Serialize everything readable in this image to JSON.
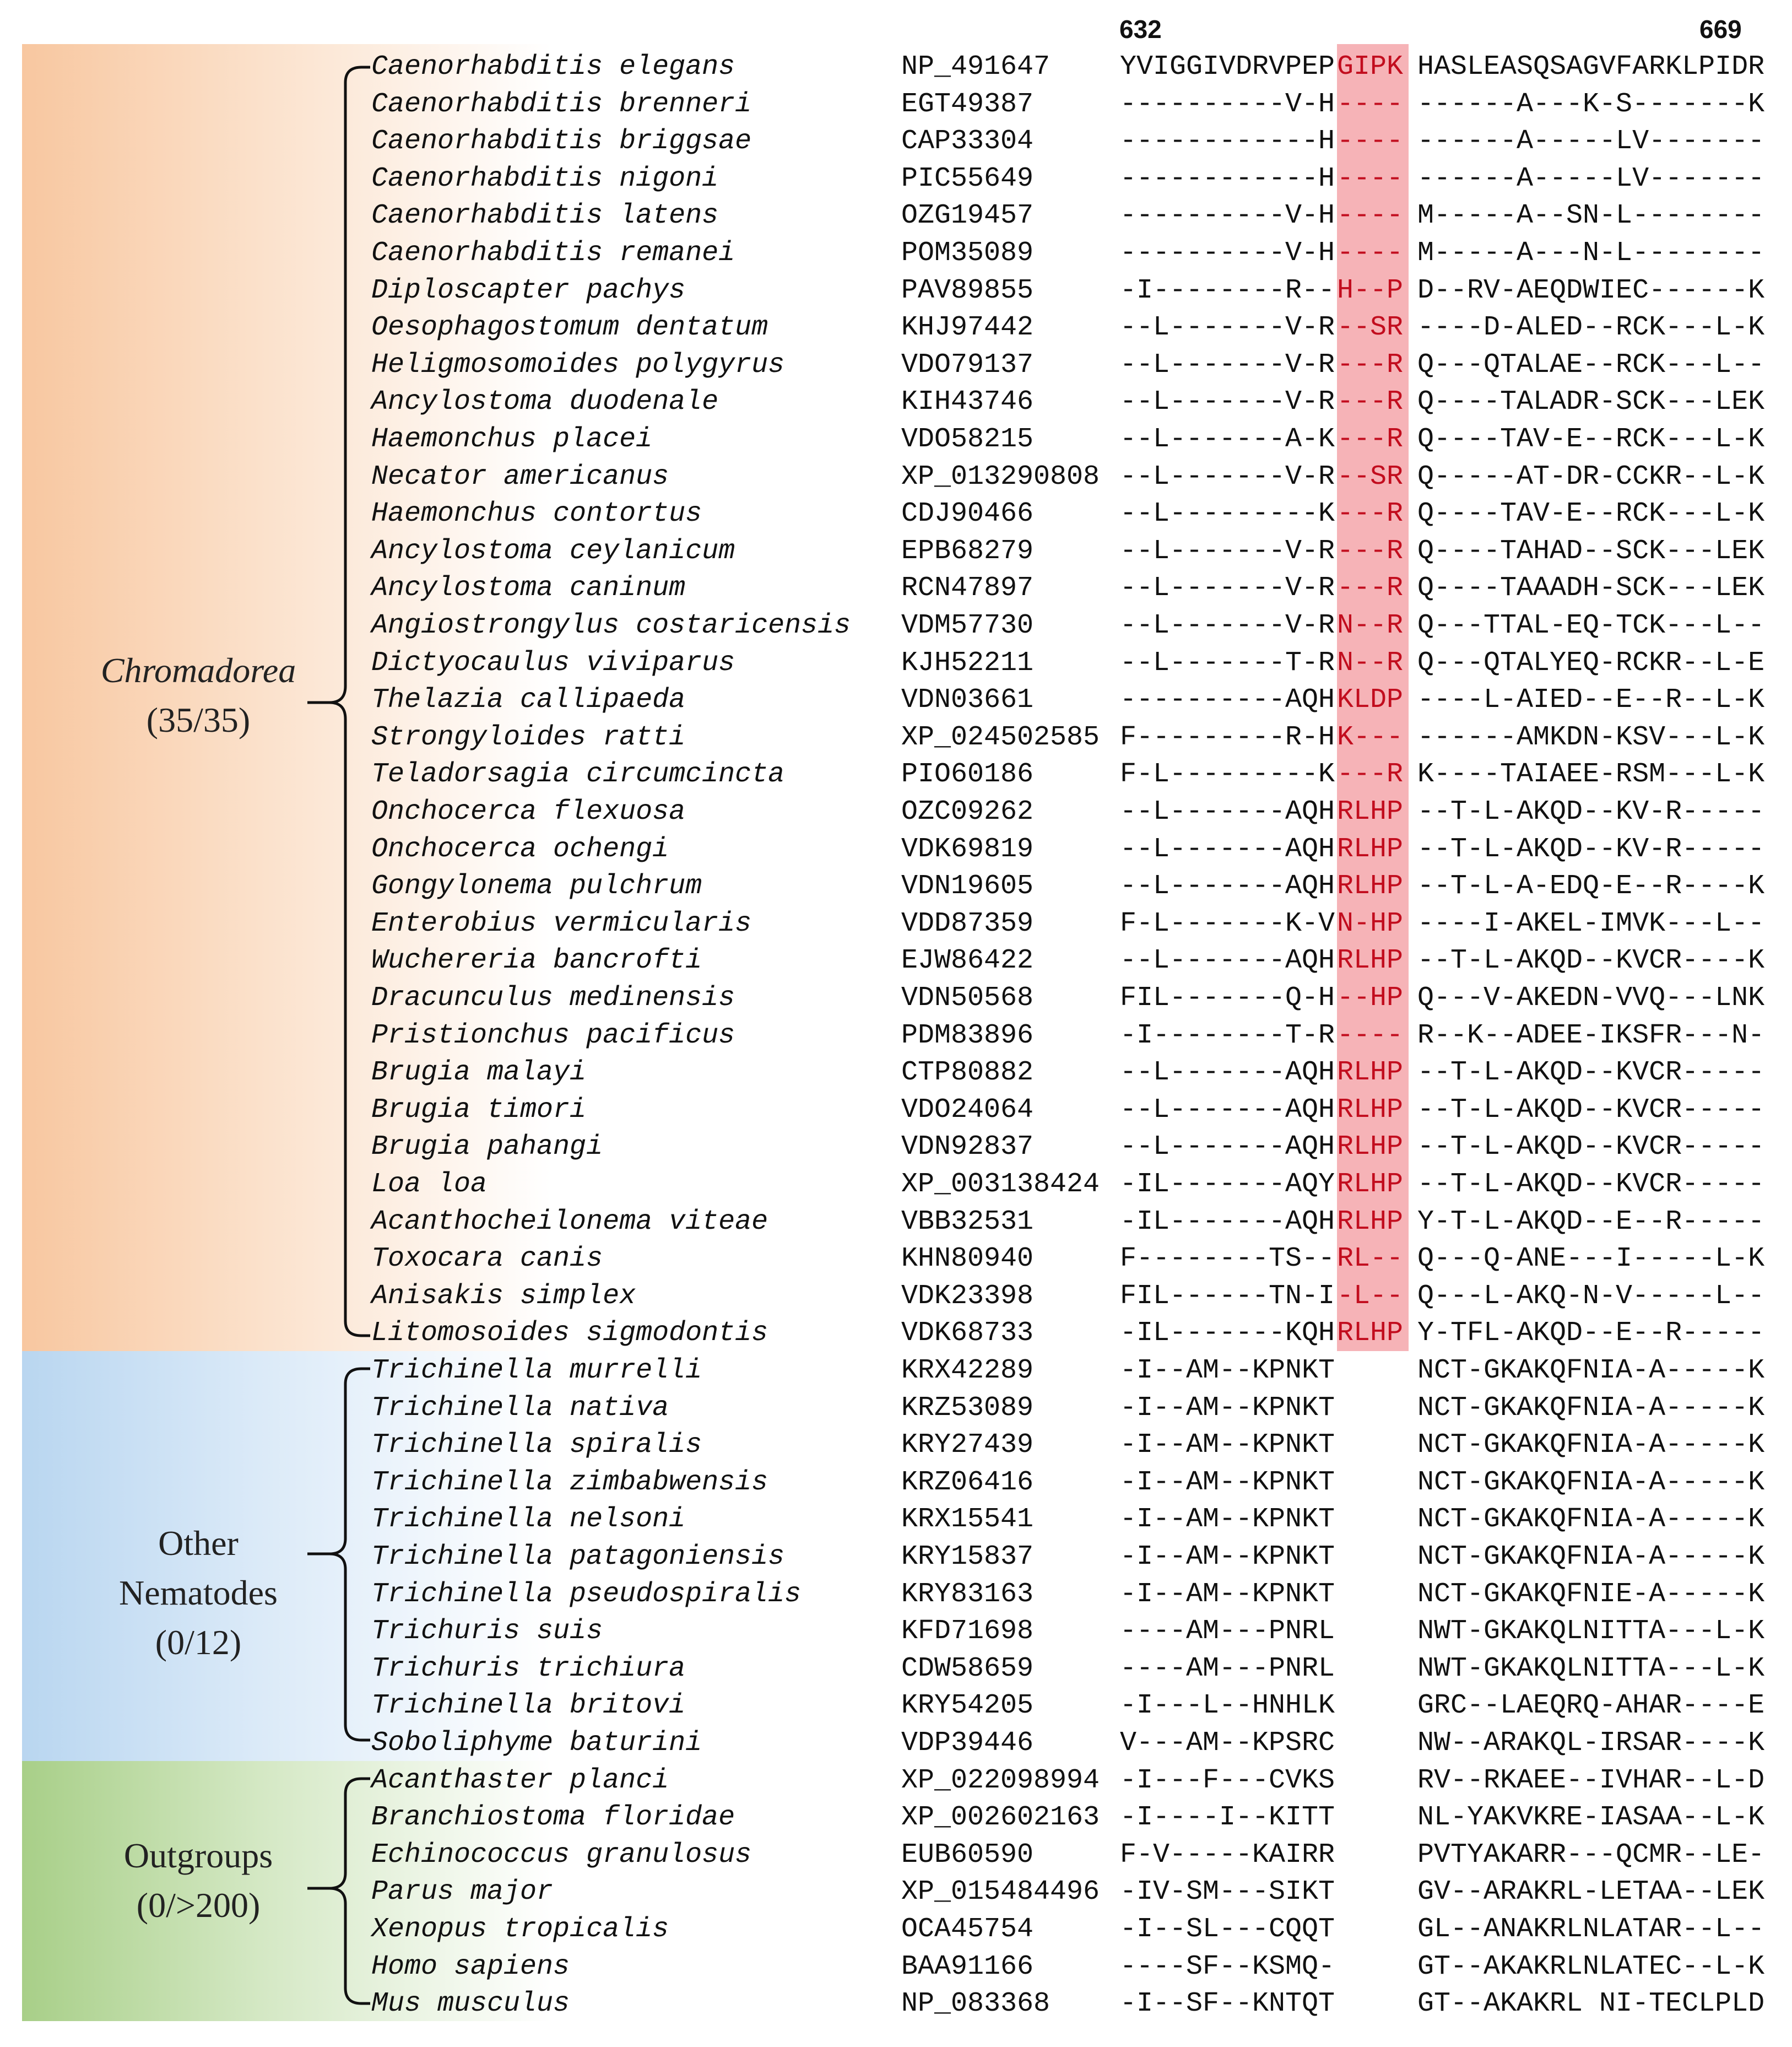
{
  "positions": {
    "start": "632",
    "end": "669"
  },
  "groups": [
    {
      "name": "Chromadorea",
      "count": "(35/35)",
      "italic": true,
      "color": "#f8c7a0"
    },
    {
      "name": "Other Nematodes",
      "count": "(0/12)",
      "italic": false,
      "color": "#b9d6f0"
    },
    {
      "name": "Outgroups",
      "count": "(0/>200)",
      "italic": false,
      "color": "#a8cf88"
    }
  ],
  "rows": [
    {
      "species": "Caenorhabditis elegans",
      "acc": "NP_491647",
      "s1": "YVIGGIVDRVPEP",
      "s2": "GIPK",
      "s3": "HASLEASQSAGVFARKLPIDR"
    },
    {
      "species": "Caenorhabditis brenneri",
      "acc": "EGT49387",
      "s1": "----------V-H",
      "s2": "----",
      "s3": "------A---K-S-------K"
    },
    {
      "species": "Caenorhabditis briggsae",
      "acc": "CAP33304",
      "s1": "------------H",
      "s2": "----",
      "s3": "------A-----LV-------"
    },
    {
      "species": "Caenorhabditis nigoni",
      "acc": "PIC55649",
      "s1": "------------H",
      "s2": "----",
      "s3": "------A-----LV-------"
    },
    {
      "species": "Caenorhabditis latens",
      "acc": "OZG19457",
      "s1": "----------V-H",
      "s2": "----",
      "s3": "M-----A--SN-L--------"
    },
    {
      "species": "Caenorhabditis remanei",
      "acc": "POM35089",
      "s1": "----------V-H",
      "s2": "----",
      "s3": "M-----A---N-L--------"
    },
    {
      "species": "Diploscapter pachys",
      "acc": "PAV89855",
      "s1": "-I--------R--",
      "s2": "H--P",
      "s3": "D--RV-AEQDWIEC------K"
    },
    {
      "species": "Oesophagostomum dentatum",
      "acc": "KHJ97442",
      "s1": "--L-------V-R",
      "s2": "--SR",
      "s3": "----D-ALED--RCK---L-K"
    },
    {
      "species": "Heligmosomoides polygyrus",
      "acc": "VDO79137",
      "s1": "--L-------V-R",
      "s2": "---R",
      "s3": "Q---QTALAE--RCK---L--"
    },
    {
      "species": "Ancylostoma duodenale",
      "acc": "KIH43746",
      "s1": "--L-------V-R",
      "s2": "---R",
      "s3": "Q----TALADR-SCK---LEK"
    },
    {
      "species": "Haemonchus placei",
      "acc": "VDO58215",
      "s1": "--L-------A-K",
      "s2": "---R",
      "s3": "Q----TAV-E--RCK---L-K"
    },
    {
      "species": "Necator americanus",
      "acc": "XP_013290808",
      "s1": "--L-------V-R",
      "s2": "--SR",
      "s3": "Q-----AT-DR-CCKR--L-K"
    },
    {
      "species": "Haemonchus contortus",
      "acc": "CDJ90466",
      "s1": "--L---------K",
      "s2": "---R",
      "s3": "Q----TAV-E--RCK---L-K"
    },
    {
      "species": "Ancylostoma ceylanicum",
      "acc": "EPB68279",
      "s1": "--L-------V-R",
      "s2": "---R",
      "s3": "Q----TAHAD--SCK---LEK"
    },
    {
      "species": "Ancylostoma caninum",
      "acc": "RCN47897",
      "s1": "--L-------V-R",
      "s2": "---R",
      "s3": "Q----TAAADH-SCK---LEK"
    },
    {
      "species": "Angiostrongylus costaricensis",
      "acc": "VDM57730",
      "s1": "--L-------V-R",
      "s2": "N--R",
      "s3": "Q---TTAL-EQ-TCK---L--"
    },
    {
      "species": "Dictyocaulus viviparus",
      "acc": "KJH52211",
      "s1": "--L-------T-R",
      "s2": "N--R",
      "s3": "Q---QTALYEQ-RCKR--L-E"
    },
    {
      "species": "Thelazia callipaeda",
      "acc": "VDN03661",
      "s1": "----------AQH",
      "s2": "KLDP",
      "s3": "----L-AIED--E--R--L-K"
    },
    {
      "species": "Strongyloides ratti",
      "acc": "XP_024502585",
      "s1": "F---------R-H",
      "s2": "K---",
      "s3": "------AMKDN-KSV---L-K"
    },
    {
      "species": "Teladorsagia circumcincta",
      "acc": "PIO60186",
      "s1": "F-L---------K",
      "s2": "---R",
      "s3": "K----TAIAEE-RSM---L-K"
    },
    {
      "species": "Onchocerca flexuosa",
      "acc": "OZC09262",
      "s1": "--L-------AQH",
      "s2": "RLHP",
      "s3": "--T-L-AKQD--KV-R-----"
    },
    {
      "species": "Onchocerca ochengi",
      "acc": "VDK69819",
      "s1": "--L-------AQH",
      "s2": "RLHP",
      "s3": "--T-L-AKQD--KV-R-----"
    },
    {
      "species": "Gongylonema pulchrum",
      "acc": "VDN19605",
      "s1": "--L-------AQH",
      "s2": "RLHP",
      "s3": "--T-L-A-EDQ-E--R----K"
    },
    {
      "species": "Enterobius vermicularis",
      "acc": "VDD87359",
      "s1": "F-L-------K-V",
      "s2": "N-HP",
      "s3": "----I-AKEL-IMVK---L--"
    },
    {
      "species": "Wuchereria bancrofti",
      "acc": "EJW86422",
      "s1": "--L-------AQH",
      "s2": "RLHP",
      "s3": "--T-L-AKQD--KVCR----K"
    },
    {
      "species": "Dracunculus medinensis",
      "acc": "VDN50568",
      "s1": "FIL-------Q-H",
      "s2": "--HP",
      "s3": "Q---V-AKEDN-VVQ---LNK"
    },
    {
      "species": "Pristionchus pacificus",
      "acc": "PDM83896",
      "s1": "-I--------T-R",
      "s2": "----",
      "s3": "R--K--ADEE-IKSFR---N-"
    },
    {
      "species": "Brugia malayi",
      "acc": "CTP80882",
      "s1": "--L-------AQH",
      "s2": "RLHP",
      "s3": "--T-L-AKQD--KVCR-----"
    },
    {
      "species": "Brugia timori",
      "acc": "VDO24064",
      "s1": "--L-------AQH",
      "s2": "RLHP",
      "s3": "--T-L-AKQD--KVCR-----"
    },
    {
      "species": "Brugia pahangi",
      "acc": "VDN92837",
      "s1": "--L-------AQH",
      "s2": "RLHP",
      "s3": "--T-L-AKQD--KVCR-----"
    },
    {
      "species": "Loa loa",
      "acc": "XP_003138424",
      "s1": "-IL-------AQY",
      "s2": "RLHP",
      "s3": "--T-L-AKQD--KVCR-----"
    },
    {
      "species": "Acanthocheilonema viteae",
      "acc": "VBB32531",
      "s1": "-IL-------AQH",
      "s2": "RLHP",
      "s3": "Y-T-L-AKQD--E--R-----"
    },
    {
      "species": "Toxocara canis",
      "acc": "KHN80940",
      "s1": "F--------TS--",
      "s2": "RL--",
      "s3": "Q---Q-ANE---I-----L-K"
    },
    {
      "species": "Anisakis simplex",
      "acc": "VDK23398",
      "s1": "FIL------TN-I",
      "s2": "-L--",
      "s3": "Q---L-AKQ-N-V-----L--"
    },
    {
      "species": "Litomosoides sigmodontis",
      "acc": "VDK68733",
      "s1": "-IL-------KQH",
      "s2": "RLHP",
      "s3": "Y-TFL-AKQD--E--R-----"
    },
    {
      "species": "Trichinella murrelli",
      "acc": "KRX42289",
      "s1": "-I--AM--KPNKT",
      "s2": "",
      "s3": "NCT-GKAKQFNIA-A-----K"
    },
    {
      "species": "Trichinella nativa",
      "acc": "KRZ53089",
      "s1": "-I--AM--KPNKT",
      "s2": "",
      "s3": "NCT-GKAKQFNIA-A-----K"
    },
    {
      "species": "Trichinella spiralis",
      "acc": "KRY27439",
      "s1": "-I--AM--KPNKT",
      "s2": "",
      "s3": "NCT-GKAKQFNIA-A-----K"
    },
    {
      "species": "Trichinella zimbabwensis",
      "acc": "KRZ06416",
      "s1": "-I--AM--KPNKT",
      "s2": "",
      "s3": "NCT-GKAKQFNIA-A-----K"
    },
    {
      "species": "Trichinella nelsoni",
      "acc": "KRX15541",
      "s1": "-I--AM--KPNKT",
      "s2": "",
      "s3": "NCT-GKAKQFNIA-A-----K"
    },
    {
      "species": "Trichinella patagoniensis",
      "acc": "KRY15837",
      "s1": "-I--AM--KPNKT",
      "s2": "",
      "s3": "NCT-GKAKQFNIA-A-----K"
    },
    {
      "species": "Trichinella pseudospiralis",
      "acc": "KRY83163",
      "s1": "-I--AM--KPNKT",
      "s2": "",
      "s3": "NCT-GKAKQFNIE-A-----K"
    },
    {
      "species": "Trichuris suis",
      "acc": "KFD71698",
      "s1": "----AM---PNRL",
      "s2": "",
      "s3": "NWT-GKAKQLNITTA---L-K"
    },
    {
      "species": "Trichuris trichiura",
      "acc": "CDW58659",
      "s1": "----AM---PNRL",
      "s2": "",
      "s3": "NWT-GKAKQLNITTA---L-K"
    },
    {
      "species": "Trichinella britovi",
      "acc": "KRY54205",
      "s1": "-I---L--HNHLK",
      "s2": "",
      "s3": "GRC--LAEQRQ-AHAR----E"
    },
    {
      "species": "Soboliphyme baturini",
      "acc": "VDP39446",
      "s1": "V---AM--KPSRC",
      "s2": "",
      "s3": "NW--ARAKQL-IRSAR----K"
    },
    {
      "species": "Acanthaster planci",
      "acc": "XP_022098994",
      "s1": "-I---F---CVKS",
      "s2": "",
      "s3": "RV--RKAEE--IVHAR--L-D"
    },
    {
      "species": "Branchiostoma floridae",
      "acc": "XP_002602163",
      "s1": "-I----I--KITT",
      "s2": "",
      "s3": "NL-YAKVKRE-IASAA--L-K"
    },
    {
      "species": "Echinococcus granulosus",
      "acc": "EUB60590",
      "s1": "F-V-----KAIRR",
      "s2": "",
      "s3": "PVTYAKARR---QCMR--LE-"
    },
    {
      "species": "Parus major",
      "acc": "XP_015484496",
      "s1": "-IV-SM---SIKT",
      "s2": "",
      "s3": "GV--ARAKRL-LETAA--LEK"
    },
    {
      "species": "Xenopus tropicalis",
      "acc": "OCA45754",
      "s1": "-I--SL---CQQT",
      "s2": "",
      "s3": "GL--ANAKRLNLATAR--L--"
    },
    {
      "species": "Homo sapiens",
      "acc": "BAA91166",
      "s1": "----SF--KSMQ-",
      "s2": "",
      "s3": "GT--AKAKRLNLATEC--L-K"
    },
    {
      "species": "Mus musculus",
      "acc": "NP_083368",
      "s1": "-I--SF--KNTQT",
      "s2": "",
      "s3": "GT--AKAKRL NI-TECLPLD"
    }
  ]
}
